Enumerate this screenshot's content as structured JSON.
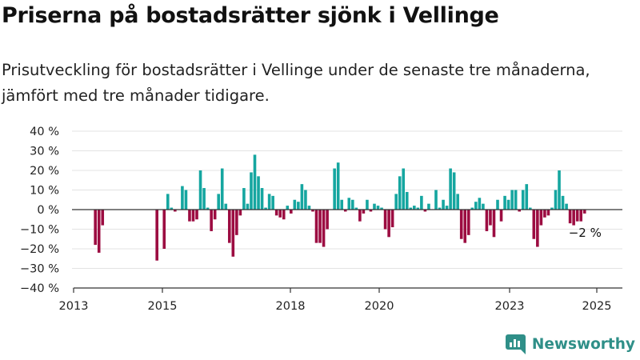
{
  "title": "Priserna på bostadsrätter sjönk i Vellinge",
  "subtitle": "Prisutveckling för bostadsrätter i Vellinge under de senaste tre månaderna, jämfört med tre månader tidigare.",
  "brand": "Newsworthy",
  "colors": {
    "positive": "#15a6a0",
    "negative": "#9c0c41",
    "brand": "#2f8f88"
  },
  "chart_data": {
    "type": "bar",
    "y_ticks": [
      "40 %",
      "30 %",
      "20 %",
      "10 %",
      "0 %",
      "−10 %",
      "−20 %",
      "−30 %",
      "−40 %"
    ],
    "x_ticks": [
      "2013",
      "2015",
      "2018",
      "2020",
      "2023",
      "2025"
    ],
    "ylim": [
      -40,
      40
    ],
    "grid": true,
    "annotation": "−2 %",
    "x_unit": "month index since Jan 2013",
    "bars": [
      {
        "x": 6,
        "y": -18
      },
      {
        "x": 7,
        "y": -22
      },
      {
        "x": 8,
        "y": -8
      },
      {
        "x": 23,
        "y": -26
      },
      {
        "x": 25,
        "y": -20
      },
      {
        "x": 26,
        "y": 8
      },
      {
        "x": 27,
        "y": 1
      },
      {
        "x": 28,
        "y": -1
      },
      {
        "x": 30,
        "y": 12
      },
      {
        "x": 31,
        "y": 10
      },
      {
        "x": 32,
        "y": -6
      },
      {
        "x": 33,
        "y": -6
      },
      {
        "x": 34,
        "y": -5
      },
      {
        "x": 35,
        "y": 20
      },
      {
        "x": 36,
        "y": 11
      },
      {
        "x": 37,
        "y": 1
      },
      {
        "x": 38,
        "y": -11
      },
      {
        "x": 39,
        "y": -5
      },
      {
        "x": 40,
        "y": 8
      },
      {
        "x": 41,
        "y": 21
      },
      {
        "x": 42,
        "y": 3
      },
      {
        "x": 43,
        "y": -17
      },
      {
        "x": 44,
        "y": -24
      },
      {
        "x": 45,
        "y": -13
      },
      {
        "x": 46,
        "y": -3
      },
      {
        "x": 47,
        "y": 11
      },
      {
        "x": 48,
        "y": 3
      },
      {
        "x": 49,
        "y": 19
      },
      {
        "x": 50,
        "y": 28
      },
      {
        "x": 51,
        "y": 17
      },
      {
        "x": 52,
        "y": 11
      },
      {
        "x": 53,
        "y": 1
      },
      {
        "x": 54,
        "y": 8
      },
      {
        "x": 55,
        "y": 7
      },
      {
        "x": 56,
        "y": -3
      },
      {
        "x": 57,
        "y": -4
      },
      {
        "x": 58,
        "y": -5
      },
      {
        "x": 59,
        "y": 2
      },
      {
        "x": 60,
        "y": -2
      },
      {
        "x": 61,
        "y": 5
      },
      {
        "x": 62,
        "y": 4
      },
      {
        "x": 63,
        "y": 13
      },
      {
        "x": 64,
        "y": 10
      },
      {
        "x": 65,
        "y": 2
      },
      {
        "x": 66,
        "y": -1
      },
      {
        "x": 67,
        "y": -17
      },
      {
        "x": 68,
        "y": -17
      },
      {
        "x": 69,
        "y": -19
      },
      {
        "x": 70,
        "y": -10
      },
      {
        "x": 72,
        "y": 21
      },
      {
        "x": 73,
        "y": 24
      },
      {
        "x": 74,
        "y": 5
      },
      {
        "x": 75,
        "y": -1
      },
      {
        "x": 76,
        "y": 6
      },
      {
        "x": 77,
        "y": 5
      },
      {
        "x": 78,
        "y": 1
      },
      {
        "x": 79,
        "y": -6
      },
      {
        "x": 80,
        "y": -2
      },
      {
        "x": 81,
        "y": 5
      },
      {
        "x": 82,
        "y": -1
      },
      {
        "x": 83,
        "y": 3
      },
      {
        "x": 84,
        "y": 2
      },
      {
        "x": 85,
        "y": 1
      },
      {
        "x": 86,
        "y": -10
      },
      {
        "x": 87,
        "y": -14
      },
      {
        "x": 88,
        "y": -9
      },
      {
        "x": 89,
        "y": 8
      },
      {
        "x": 90,
        "y": 17
      },
      {
        "x": 91,
        "y": 21
      },
      {
        "x": 92,
        "y": 9
      },
      {
        "x": 93,
        "y": 1
      },
      {
        "x": 94,
        "y": 2
      },
      {
        "x": 95,
        "y": 1
      },
      {
        "x": 96,
        "y": 7
      },
      {
        "x": 97,
        "y": -1
      },
      {
        "x": 98,
        "y": 3
      },
      {
        "x": 100,
        "y": 10
      },
      {
        "x": 101,
        "y": 1
      },
      {
        "x": 102,
        "y": 5
      },
      {
        "x": 103,
        "y": 2
      },
      {
        "x": 104,
        "y": 21
      },
      {
        "x": 105,
        "y": 19
      },
      {
        "x": 106,
        "y": 8
      },
      {
        "x": 107,
        "y": -15
      },
      {
        "x": 108,
        "y": -17
      },
      {
        "x": 109,
        "y": -13
      },
      {
        "x": 110,
        "y": 1
      },
      {
        "x": 111,
        "y": 4
      },
      {
        "x": 112,
        "y": 6
      },
      {
        "x": 113,
        "y": 3
      },
      {
        "x": 114,
        "y": -11
      },
      {
        "x": 115,
        "y": -8
      },
      {
        "x": 116,
        "y": -14
      },
      {
        "x": 117,
        "y": 5
      },
      {
        "x": 118,
        "y": -6
      },
      {
        "x": 119,
        "y": 7
      },
      {
        "x": 120,
        "y": 5
      },
      {
        "x": 121,
        "y": 10
      },
      {
        "x": 122,
        "y": 10
      },
      {
        "x": 123,
        "y": -1
      },
      {
        "x": 124,
        "y": 10
      },
      {
        "x": 125,
        "y": 13
      },
      {
        "x": 126,
        "y": 1
      },
      {
        "x": 127,
        "y": -15
      },
      {
        "x": 128,
        "y": -19
      },
      {
        "x": 129,
        "y": -8
      },
      {
        "x": 130,
        "y": -4
      },
      {
        "x": 131,
        "y": -3
      },
      {
        "x": 132,
        "y": 1
      },
      {
        "x": 133,
        "y": 10
      },
      {
        "x": 134,
        "y": 20
      },
      {
        "x": 135,
        "y": 7
      },
      {
        "x": 136,
        "y": 3
      },
      {
        "x": 137,
        "y": -7
      },
      {
        "x": 138,
        "y": -8
      },
      {
        "x": 139,
        "y": -6
      },
      {
        "x": 140,
        "y": -6
      },
      {
        "x": 141,
        "y": -2
      }
    ]
  }
}
